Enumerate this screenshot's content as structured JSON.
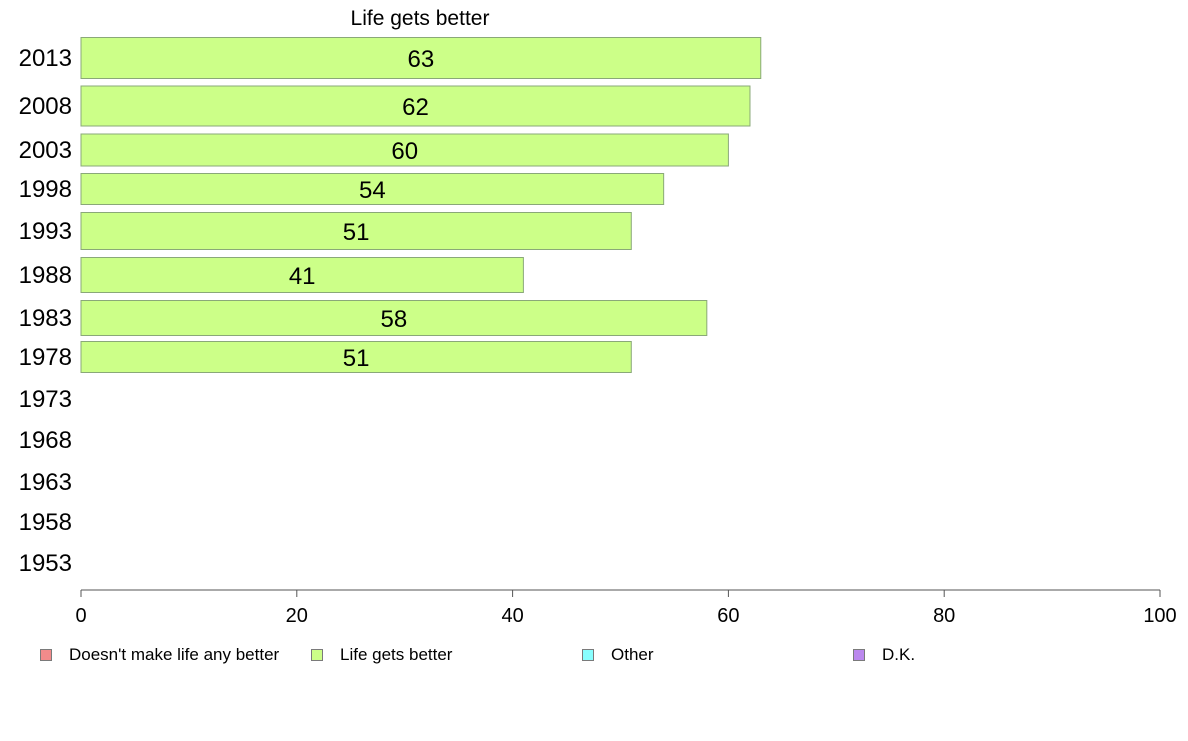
{
  "chart_data": {
    "type": "bar",
    "orientation": "horizontal",
    "title": "Life gets better",
    "categories": [
      "2013",
      "2008",
      "2003",
      "1998",
      "1993",
      "1988",
      "1983",
      "1978",
      "1973",
      "1968",
      "1963",
      "1958",
      "1953"
    ],
    "series": [
      {
        "name": "Life gets better",
        "values": [
          63,
          62,
          60,
          54,
          51,
          41,
          58,
          51,
          null,
          null,
          null,
          null,
          null
        ]
      }
    ],
    "data_labels": [
      "63",
      "62",
      "60",
      "54",
      "51",
      "41",
      "58",
      "51",
      "",
      "",
      "",
      "",
      ""
    ],
    "xlim": [
      0,
      100
    ],
    "x_ticks": [
      "0",
      "20",
      "40",
      "60",
      "80",
      "100"
    ],
    "grid": false,
    "legend_placement": "bottom",
    "legend": [
      {
        "label": "Doesn't make life any better",
        "color": "#f28b8b"
      },
      {
        "label": "Life gets better",
        "color": "#ccff88"
      },
      {
        "label": "Other",
        "color": "#88ffff"
      },
      {
        "label": "D.K.",
        "color": "#bb88ee"
      }
    ],
    "bar_color": "#ccff88",
    "bar_border_color": "#8aa878"
  }
}
